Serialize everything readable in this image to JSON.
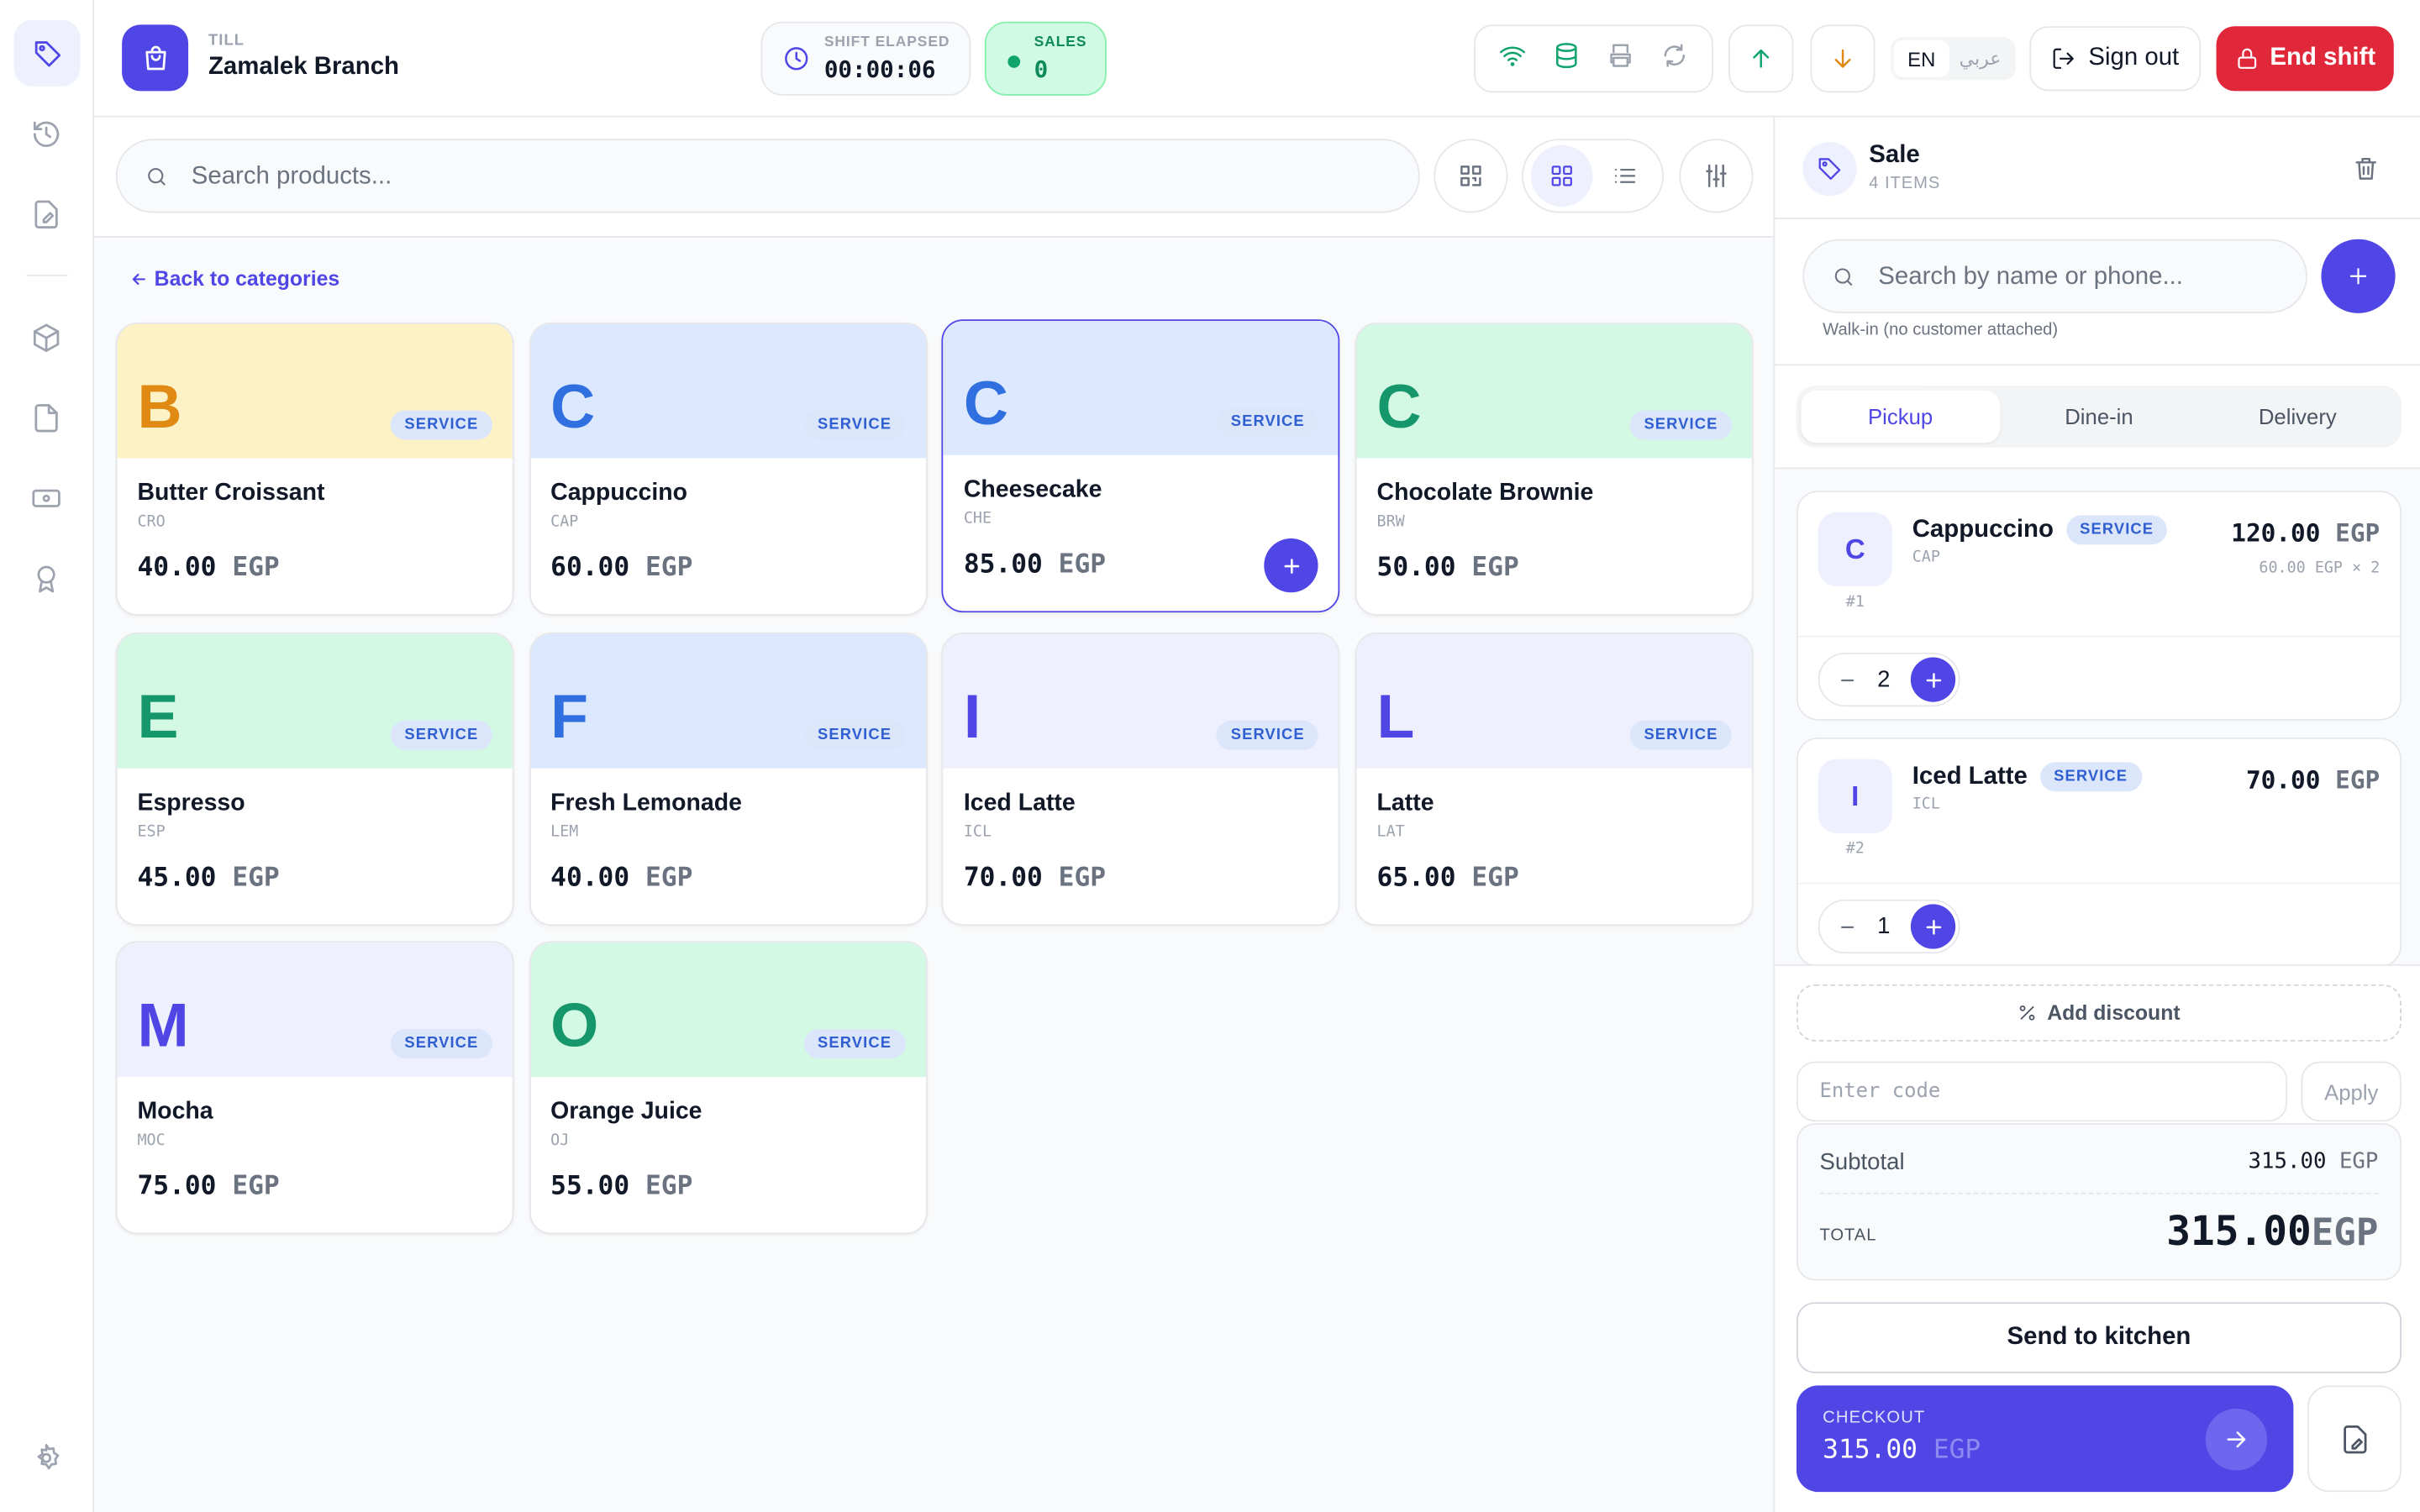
{
  "header": {
    "till_label": "TILL",
    "branch": "Zamalek Branch",
    "shift_label": "SHIFT ELAPSED",
    "shift_time": "00:00:06",
    "sales_label": "SALES",
    "sales_value": "0",
    "lang_en": "EN",
    "lang_ar": "عربي",
    "sign_out": "Sign out",
    "end_shift": "End shift"
  },
  "currency": "EGP",
  "search_placeholder": "Search products...",
  "back_link": "Back to categories",
  "products": [
    {
      "letter": "B",
      "badge": "SERVICE",
      "name": "Butter Croissant",
      "code": "CRO",
      "price": "40.00",
      "tint": "#fdf1c6",
      "ink": "#e08a14"
    },
    {
      "letter": "C",
      "badge": "SERVICE",
      "name": "Cappuccino",
      "code": "CAP",
      "price": "60.00",
      "tint": "#dce8fd",
      "ink": "#2f6fe0"
    },
    {
      "letter": "C",
      "badge": "SERVICE",
      "name": "Cheesecake",
      "code": "CHE",
      "price": "85.00",
      "tint": "#dce8fd",
      "ink": "#2f6fe0",
      "selected": true
    },
    {
      "letter": "C",
      "badge": "SERVICE",
      "name": "Chocolate Brownie",
      "code": "BRW",
      "price": "50.00",
      "tint": "#d3f8e4",
      "ink": "#16976b"
    },
    {
      "letter": "E",
      "badge": "SERVICE",
      "name": "Espresso",
      "code": "ESP",
      "price": "45.00",
      "tint": "#d3f8e4",
      "ink": "#16976b"
    },
    {
      "letter": "F",
      "badge": "SERVICE",
      "name": "Fresh Lemonade",
      "code": "LEM",
      "price": "40.00",
      "tint": "#dce8fd",
      "ink": "#2f6fe0"
    },
    {
      "letter": "I",
      "badge": "SERVICE",
      "name": "Iced Latte",
      "code": "ICL",
      "price": "70.00",
      "tint": "#eef0fd",
      "ink": "#4f46e5"
    },
    {
      "letter": "L",
      "badge": "SERVICE",
      "name": "Latte",
      "code": "LAT",
      "price": "65.00",
      "tint": "#eef0fd",
      "ink": "#4f46e5"
    },
    {
      "letter": "M",
      "badge": "SERVICE",
      "name": "Mocha",
      "code": "MOC",
      "price": "75.00",
      "tint": "#eef0fd",
      "ink": "#4f46e5"
    },
    {
      "letter": "O",
      "badge": "SERVICE",
      "name": "Orange Juice",
      "code": "OJ",
      "price": "55.00",
      "tint": "#d3f8e4",
      "ink": "#16976b"
    }
  ],
  "cart": {
    "title": "Sale",
    "count": "4 ITEMS",
    "customer_placeholder": "Search by name or phone...",
    "walkin": "Walk-in (no customer attached)",
    "tabs": [
      "Pickup",
      "Dine-in",
      "Delivery"
    ],
    "active_tab": 0,
    "items": [
      {
        "letter": "C",
        "name": "Cappuccino",
        "badge": "SERVICE",
        "code": "CAP",
        "index": "#1",
        "total": "120.00",
        "unit": "60.00",
        "times": "× 2",
        "qty": "2"
      },
      {
        "letter": "I",
        "name": "Iced Latte",
        "badge": "SERVICE",
        "code": "ICL",
        "index": "#2",
        "total": "70.00",
        "qty": "1"
      }
    ],
    "add_discount": "Add discount",
    "code_placeholder": "Enter code",
    "apply": "Apply",
    "subtotal_label": "Subtotal",
    "subtotal": "315.00",
    "total_label": "TOTAL",
    "total": "315.00",
    "send": "Send to kitchen",
    "checkout_label": "CHECKOUT",
    "checkout_amount": "315.00"
  }
}
